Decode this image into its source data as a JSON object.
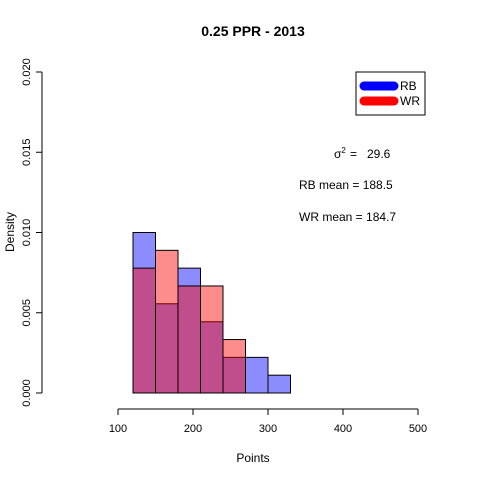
{
  "chart_data": {
    "type": "histogram",
    "title": "0.25 PPR - 2013",
    "xlabel": "Points",
    "ylabel": "Density",
    "xlim": [
      20,
      500
    ],
    "ylim": [
      0,
      0.02
    ],
    "x_ticks": [
      100,
      200,
      300,
      400,
      500
    ],
    "y_ticks": [
      0.0,
      0.005,
      0.01,
      0.015,
      0.02
    ],
    "x_tick_labels": [
      "100",
      "200",
      "300",
      "400",
      "500"
    ],
    "y_tick_labels": [
      "0.000",
      "0.005",
      "0.010",
      "0.015",
      "0.020"
    ],
    "bin_edges": [
      120,
      150,
      180,
      210,
      240,
      270,
      300,
      330
    ],
    "series": [
      {
        "name": "RB",
        "color": "#0000ff",
        "fill_alpha": 0.45,
        "values": [
          0.01,
          0.00556,
          0.00778,
          0.00444,
          0.00222,
          0.00222,
          0.00111
        ]
      },
      {
        "name": "WR",
        "color": "#ff0000",
        "fill_alpha": 0.45,
        "values": [
          0.00778,
          0.00889,
          0.00667,
          0.00667,
          0.00333,
          0,
          0
        ]
      }
    ],
    "legend": {
      "position": "top-right",
      "entries": [
        "RB",
        "WR"
      ]
    },
    "annotations": {
      "variance_symbol": "σ",
      "variance_sup": "2",
      "variance_eq": "=",
      "variance_value": "29.6",
      "rb_mean": "RB mean = 188.5",
      "wr_mean": "WR mean = 184.7"
    },
    "grid": false
  }
}
